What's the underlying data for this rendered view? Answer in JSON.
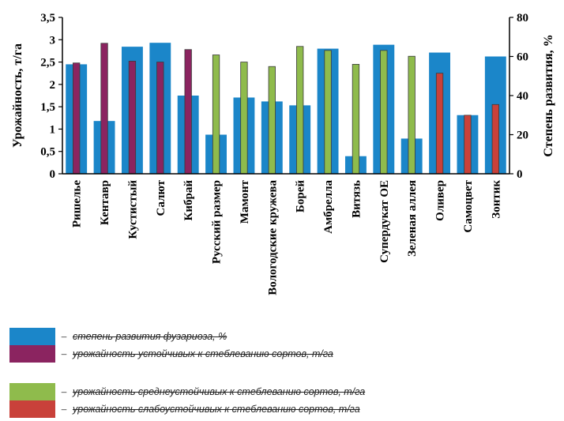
{
  "chart_data": {
    "type": "bar",
    "categories": [
      "Ришелье",
      "Кентавр",
      "Кустистый",
      "Салют",
      "Кибрай",
      "Русский размер",
      "Мамонт",
      "Вологодские кружева",
      "Борей",
      "Амбрелла",
      "Витязь",
      "Супердукат ОЕ",
      "Зеленая аллея",
      "Оливер",
      "Самоцвет",
      "Зонтик"
    ],
    "series": [
      {
        "name": "степень развития фузариоза, %",
        "axis": "right",
        "color": "#1b86c9",
        "values": [
          56,
          27,
          65,
          67,
          40,
          20,
          39,
          37,
          35,
          64,
          9,
          66,
          18,
          62,
          30,
          60
        ]
      },
      {
        "name": "урожайность устойчивых к стеблеванию сортов, т/га",
        "axis": "left",
        "color": "#8b2460",
        "values": [
          2.48,
          2.92,
          2.52,
          2.5,
          2.78,
          null,
          null,
          null,
          null,
          null,
          null,
          null,
          null,
          null,
          null,
          null
        ]
      },
      {
        "name": "урожайность среднеустойчивых к стеблеванию сортов, т/га",
        "axis": "left",
        "color": "#8fbb4c",
        "values": [
          null,
          null,
          null,
          null,
          null,
          2.66,
          2.5,
          2.4,
          2.85,
          2.76,
          2.45,
          2.76,
          2.63,
          null,
          null,
          null
        ]
      },
      {
        "name": "урожайность слабоустойчивых к стеблеванию сортов, т/га",
        "axis": "left",
        "color": "#c9413a",
        "values": [
          null,
          null,
          null,
          null,
          null,
          null,
          null,
          null,
          null,
          null,
          null,
          null,
          null,
          2.25,
          1.31,
          1.55
        ]
      }
    ],
    "y_left": {
      "label": "Урожайность, т/га",
      "ylim": [
        0,
        3.5
      ],
      "ticks": [
        "0",
        "0,5",
        "1",
        "1,5",
        "2",
        "2,5",
        "3",
        "3,5"
      ]
    },
    "y_right": {
      "label": "Степень развития, %",
      "ylim": [
        0,
        80
      ],
      "ticks": [
        "0",
        "20",
        "40",
        "60",
        "80"
      ]
    },
    "legend": [
      {
        "text": "степень развития фузариоза, %",
        "color": "#1b86c9"
      },
      {
        "text": "урожайность устойчивых к стеблеванию сортов, т/га",
        "color": "#8b2460"
      },
      {
        "text": "урожайность среднеустойчивых к стеблеванию сортов, т/га",
        "color": "#8fbb4c"
      },
      {
        "text": "урожайность слабоустойчивых к стеблеванию сортов, т/га",
        "color": "#c9413a"
      }
    ],
    "legend_dash": "–"
  }
}
